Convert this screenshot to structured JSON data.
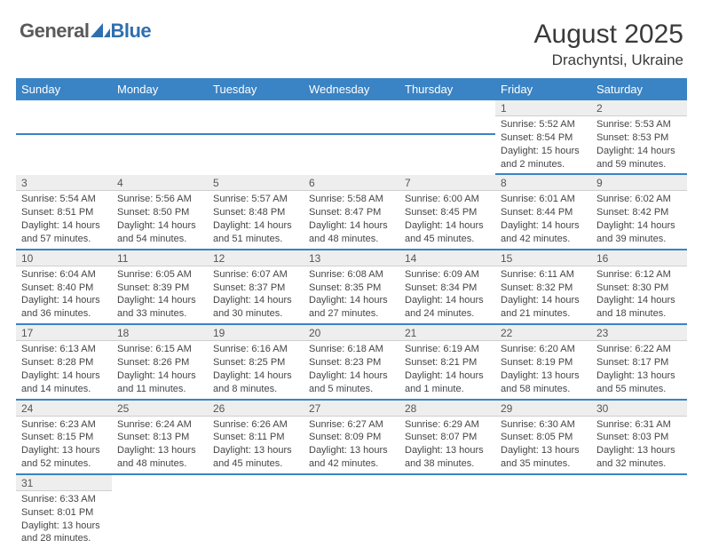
{
  "logo": {
    "part1": "General",
    "part2": "Blue"
  },
  "title": "August 2025",
  "location": "Drachyntsi, Ukraine",
  "header_bg": "#3a83c4",
  "accent_line": "#3a83c4",
  "daynum_bg": "#eeeeee",
  "daynames": [
    "Sunday",
    "Monday",
    "Tuesday",
    "Wednesday",
    "Thursday",
    "Friday",
    "Saturday"
  ],
  "weeks": [
    [
      null,
      null,
      null,
      null,
      null,
      {
        "n": "1",
        "sr": "5:52 AM",
        "ss": "8:54 PM",
        "dl": "15 hours and 2 minutes."
      },
      {
        "n": "2",
        "sr": "5:53 AM",
        "ss": "8:53 PM",
        "dl": "14 hours and 59 minutes."
      }
    ],
    [
      {
        "n": "3",
        "sr": "5:54 AM",
        "ss": "8:51 PM",
        "dl": "14 hours and 57 minutes."
      },
      {
        "n": "4",
        "sr": "5:56 AM",
        "ss": "8:50 PM",
        "dl": "14 hours and 54 minutes."
      },
      {
        "n": "5",
        "sr": "5:57 AM",
        "ss": "8:48 PM",
        "dl": "14 hours and 51 minutes."
      },
      {
        "n": "6",
        "sr": "5:58 AM",
        "ss": "8:47 PM",
        "dl": "14 hours and 48 minutes."
      },
      {
        "n": "7",
        "sr": "6:00 AM",
        "ss": "8:45 PM",
        "dl": "14 hours and 45 minutes."
      },
      {
        "n": "8",
        "sr": "6:01 AM",
        "ss": "8:44 PM",
        "dl": "14 hours and 42 minutes."
      },
      {
        "n": "9",
        "sr": "6:02 AM",
        "ss": "8:42 PM",
        "dl": "14 hours and 39 minutes."
      }
    ],
    [
      {
        "n": "10",
        "sr": "6:04 AM",
        "ss": "8:40 PM",
        "dl": "14 hours and 36 minutes."
      },
      {
        "n": "11",
        "sr": "6:05 AM",
        "ss": "8:39 PM",
        "dl": "14 hours and 33 minutes."
      },
      {
        "n": "12",
        "sr": "6:07 AM",
        "ss": "8:37 PM",
        "dl": "14 hours and 30 minutes."
      },
      {
        "n": "13",
        "sr": "6:08 AM",
        "ss": "8:35 PM",
        "dl": "14 hours and 27 minutes."
      },
      {
        "n": "14",
        "sr": "6:09 AM",
        "ss": "8:34 PM",
        "dl": "14 hours and 24 minutes."
      },
      {
        "n": "15",
        "sr": "6:11 AM",
        "ss": "8:32 PM",
        "dl": "14 hours and 21 minutes."
      },
      {
        "n": "16",
        "sr": "6:12 AM",
        "ss": "8:30 PM",
        "dl": "14 hours and 18 minutes."
      }
    ],
    [
      {
        "n": "17",
        "sr": "6:13 AM",
        "ss": "8:28 PM",
        "dl": "14 hours and 14 minutes."
      },
      {
        "n": "18",
        "sr": "6:15 AM",
        "ss": "8:26 PM",
        "dl": "14 hours and 11 minutes."
      },
      {
        "n": "19",
        "sr": "6:16 AM",
        "ss": "8:25 PM",
        "dl": "14 hours and 8 minutes."
      },
      {
        "n": "20",
        "sr": "6:18 AM",
        "ss": "8:23 PM",
        "dl": "14 hours and 5 minutes."
      },
      {
        "n": "21",
        "sr": "6:19 AM",
        "ss": "8:21 PM",
        "dl": "14 hours and 1 minute."
      },
      {
        "n": "22",
        "sr": "6:20 AM",
        "ss": "8:19 PM",
        "dl": "13 hours and 58 minutes."
      },
      {
        "n": "23",
        "sr": "6:22 AM",
        "ss": "8:17 PM",
        "dl": "13 hours and 55 minutes."
      }
    ],
    [
      {
        "n": "24",
        "sr": "6:23 AM",
        "ss": "8:15 PM",
        "dl": "13 hours and 52 minutes."
      },
      {
        "n": "25",
        "sr": "6:24 AM",
        "ss": "8:13 PM",
        "dl": "13 hours and 48 minutes."
      },
      {
        "n": "26",
        "sr": "6:26 AM",
        "ss": "8:11 PM",
        "dl": "13 hours and 45 minutes."
      },
      {
        "n": "27",
        "sr": "6:27 AM",
        "ss": "8:09 PM",
        "dl": "13 hours and 42 minutes."
      },
      {
        "n": "28",
        "sr": "6:29 AM",
        "ss": "8:07 PM",
        "dl": "13 hours and 38 minutes."
      },
      {
        "n": "29",
        "sr": "6:30 AM",
        "ss": "8:05 PM",
        "dl": "13 hours and 35 minutes."
      },
      {
        "n": "30",
        "sr": "6:31 AM",
        "ss": "8:03 PM",
        "dl": "13 hours and 32 minutes."
      }
    ],
    [
      {
        "n": "31",
        "sr": "6:33 AM",
        "ss": "8:01 PM",
        "dl": "13 hours and 28 minutes."
      },
      null,
      null,
      null,
      null,
      null,
      null
    ]
  ],
  "labels": {
    "sunrise": "Sunrise: ",
    "sunset": "Sunset: ",
    "daylight": "Daylight: "
  }
}
